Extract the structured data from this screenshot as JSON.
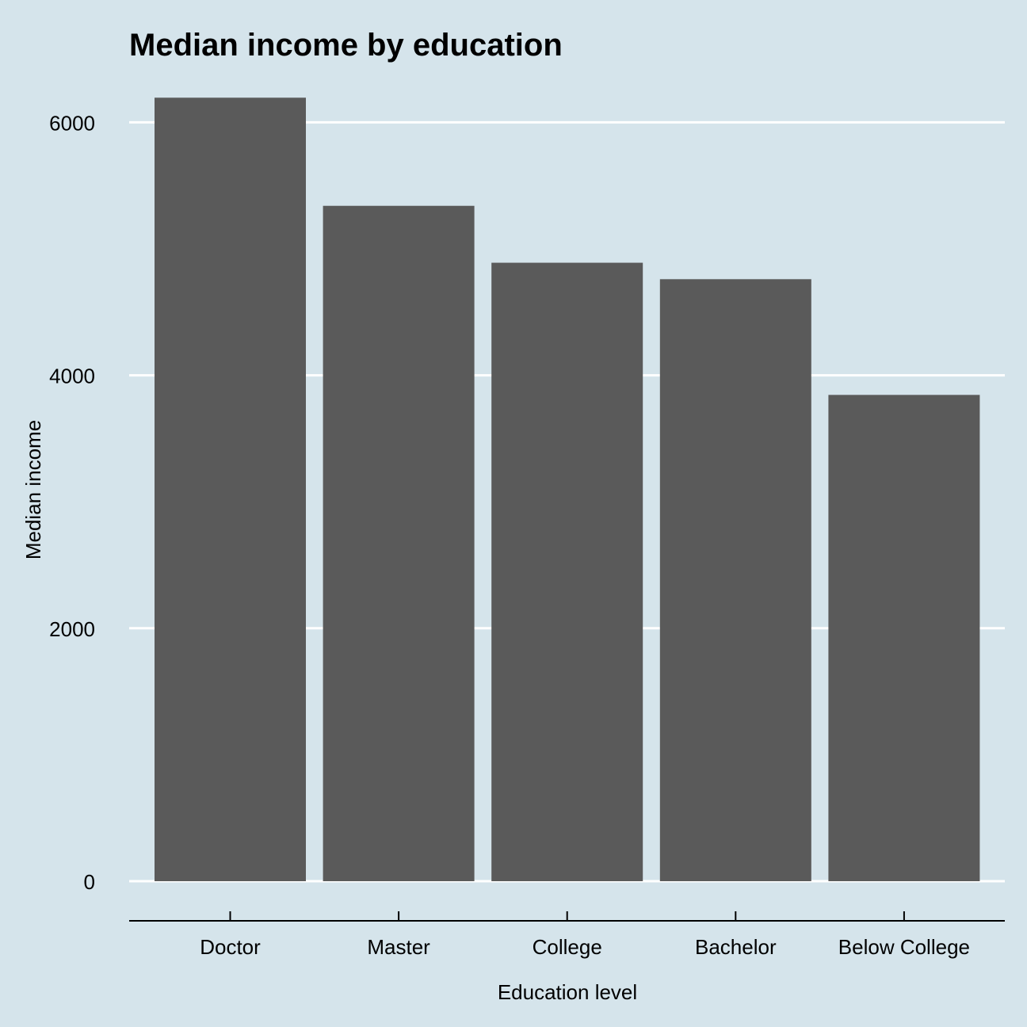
{
  "colors": {
    "background": "#d5e4eb",
    "bar": "#5a5a5a",
    "grid": "#ffffff",
    "axis": "#000000"
  },
  "chart_data": {
    "type": "bar",
    "title": "Median income by education",
    "xlabel": "Education level",
    "ylabel": "Median income",
    "categories": [
      "Doctor",
      "Master",
      "College",
      "Bachelor",
      "Below College"
    ],
    "values": [
      6195,
      5340,
      4890,
      4760,
      3845
    ],
    "ylim": [
      0,
      6200
    ],
    "yticks": [
      0,
      2000,
      4000,
      6000
    ],
    "ytick_labels": [
      "0",
      "2000",
      "4000",
      "6000"
    ],
    "grid": "horizontal-major",
    "legend": "none"
  }
}
